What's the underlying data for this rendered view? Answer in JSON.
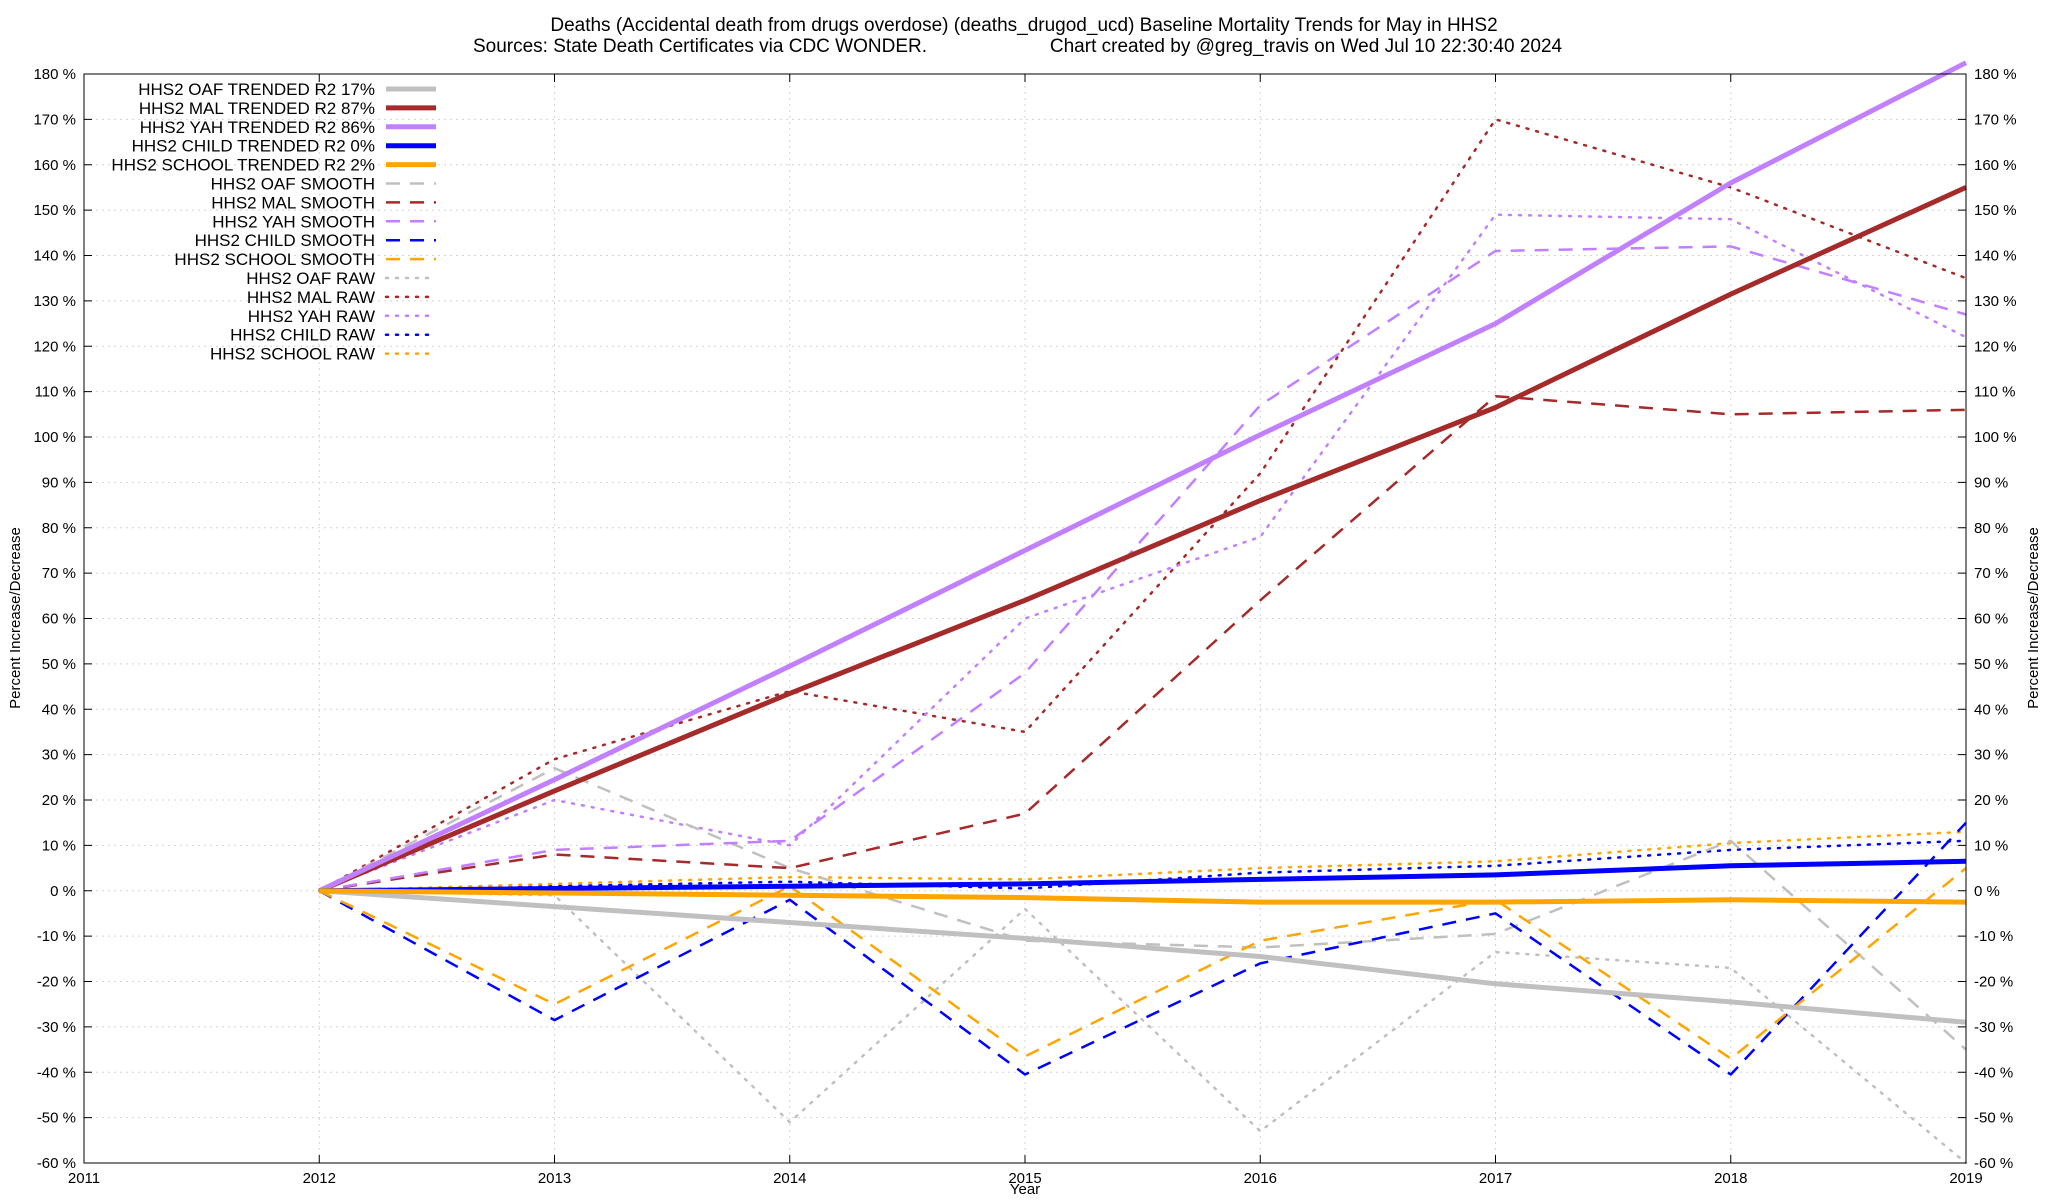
{
  "chart_data": {
    "type": "line",
    "title_line1": "Deaths (Accidental death from drugs overdose) (deaths_drugod_ucd)  Baseline Mortality Trends for May in HHS2",
    "title_line2_left": "Sources: State Death Certificates via CDC WONDER.",
    "title_line2_right": "Chart created by @greg_travis on Wed Jul 10 22:30:40 2024",
    "xlabel": "Year",
    "ylabel": "Percent Increase/Decrease",
    "xlim": [
      2011,
      2019
    ],
    "ylim": [
      -60,
      180
    ],
    "x_ticks": [
      "2011",
      "2012",
      "2013",
      "2014",
      "2015",
      "2016",
      "2017",
      "2018",
      "2019"
    ],
    "y_ticks": [
      "-60 %",
      "-50 %",
      "-40 %",
      "-30 %",
      "-20 %",
      "-10 %",
      "0 %",
      "10 %",
      "20 %",
      "30 %",
      "40 %",
      "50 %",
      "60 %",
      "70 %",
      "80 %",
      "90 %",
      "100 %",
      "110 %",
      "120 %",
      "130 %",
      "140 %",
      "150 %",
      "160 %",
      "170 %",
      "180 %"
    ],
    "grid": true,
    "legend_position": "top-left",
    "series": [
      {
        "name": "HHS2 OAF TRENDED R2  17%",
        "style": "solid",
        "color": "#c0c0c0",
        "width": 5,
        "x": [
          2012,
          2013,
          2014,
          2015,
          2016,
          2017,
          2018,
          2019
        ],
        "y": [
          0,
          -3.5,
          -7,
          -10.5,
          -14.5,
          -20.5,
          -24.5,
          -29
        ]
      },
      {
        "name": "HHS2 MAL TRENDED R2  87%",
        "style": "solid",
        "color": "#a52a2a",
        "width": 5,
        "x": [
          2012,
          2013,
          2014,
          2015,
          2016,
          2017,
          2018,
          2019
        ],
        "y": [
          0,
          22,
          43.5,
          64,
          86,
          106.5,
          131.5,
          155
        ]
      },
      {
        "name": "HHS2 YAH TRENDED R2  86%",
        "style": "solid",
        "color": "#c080ff",
        "width": 5,
        "x": [
          2012,
          2013,
          2014,
          2015,
          2016,
          2017,
          2018,
          2019
        ],
        "y": [
          0,
          24.5,
          49.5,
          75,
          100.5,
          125,
          156,
          182.5
        ]
      },
      {
        "name": "HHS2 CHILD TRENDED R2   0%",
        "style": "solid",
        "color": "#0000ff",
        "width": 5,
        "x": [
          2012,
          2013,
          2014,
          2015,
          2016,
          2017,
          2018,
          2019
        ],
        "y": [
          0,
          0.5,
          1,
          1.5,
          2.5,
          3.5,
          5.5,
          6.5
        ]
      },
      {
        "name": "HHS2 SCHOOL TRENDED R2   2%",
        "style": "solid",
        "color": "#ffa500",
        "width": 5,
        "x": [
          2012,
          2013,
          2014,
          2015,
          2016,
          2017,
          2018,
          2019
        ],
        "y": [
          0,
          -0.5,
          -1,
          -1.5,
          -2.5,
          -2.5,
          -2,
          -2.5
        ]
      },
      {
        "name": "HHS2 OAF SMOOTH",
        "style": "dashed",
        "color": "#c0c0c0",
        "width": 2.5,
        "x": [
          2012,
          2013,
          2014,
          2015,
          2016,
          2017,
          2018,
          2019
        ],
        "y": [
          0,
          27,
          5,
          -11,
          -12.5,
          -9.5,
          11,
          -35
        ]
      },
      {
        "name": "HHS2 MAL SMOOTH",
        "style": "dashed",
        "color": "#a52a2a",
        "width": 2.5,
        "x": [
          2012,
          2013,
          2014,
          2015,
          2016,
          2017,
          2018,
          2019
        ],
        "y": [
          0,
          8,
          5,
          17,
          64,
          109,
          105,
          106
        ]
      },
      {
        "name": "HHS2 YAH SMOOTH",
        "style": "dashed",
        "color": "#c080ff",
        "width": 2.5,
        "x": [
          2012,
          2013,
          2014,
          2015,
          2016,
          2017,
          2018,
          2019
        ],
        "y": [
          0,
          9,
          11,
          48,
          107,
          141,
          142,
          127
        ]
      },
      {
        "name": "HHS2 CHILD SMOOTH",
        "style": "dashed",
        "color": "#0000ff",
        "width": 2.5,
        "x": [
          2012,
          2013,
          2014,
          2015,
          2016,
          2017,
          2018,
          2019
        ],
        "y": [
          0,
          -28.5,
          -2,
          -40.5,
          -16,
          -5,
          -40.5,
          15
        ]
      },
      {
        "name": "HHS2 SCHOOL SMOOTH",
        "style": "dashed",
        "color": "#ffa500",
        "width": 2.5,
        "x": [
          2012,
          2013,
          2014,
          2015,
          2016,
          2017,
          2018,
          2019
        ],
        "y": [
          0,
          -25,
          1,
          -36.5,
          -11,
          -2,
          -37,
          5
        ]
      },
      {
        "name": "HHS2 OAF RAW",
        "style": "dotted",
        "color": "#c0c0c0",
        "width": 2.5,
        "x": [
          2012,
          2013,
          2014,
          2015,
          2016,
          2017,
          2018,
          2019
        ],
        "y": [
          0,
          -1,
          -51,
          -4,
          -53,
          -13.5,
          -17,
          -60
        ]
      },
      {
        "name": "HHS2 MAL RAW",
        "style": "dotted",
        "color": "#a52a2a",
        "width": 2.5,
        "x": [
          2012,
          2013,
          2014,
          2015,
          2016,
          2017,
          2018,
          2019
        ],
        "y": [
          0,
          29,
          44,
          35,
          92,
          170,
          155,
          135
        ]
      },
      {
        "name": "HHS2 YAH RAW",
        "style": "dotted",
        "color": "#c080ff",
        "width": 2.5,
        "x": [
          2012,
          2013,
          2014,
          2015,
          2016,
          2017,
          2018,
          2019
        ],
        "y": [
          0,
          20,
          10,
          60,
          78,
          149,
          148,
          122
        ]
      },
      {
        "name": "HHS2 CHILD RAW",
        "style": "dotted",
        "color": "#0000ff",
        "width": 2.5,
        "x": [
          2012,
          2013,
          2014,
          2015,
          2016,
          2017,
          2018,
          2019
        ],
        "y": [
          0,
          1,
          2,
          0.5,
          4,
          5.5,
          9,
          11
        ]
      },
      {
        "name": "HHS2 SCHOOL RAW",
        "style": "dotted",
        "color": "#ffa500",
        "width": 2.5,
        "x": [
          2012,
          2013,
          2014,
          2015,
          2016,
          2017,
          2018,
          2019
        ],
        "y": [
          0,
          1.5,
          3,
          2.5,
          5,
          6.5,
          10.5,
          13
        ]
      }
    ]
  }
}
